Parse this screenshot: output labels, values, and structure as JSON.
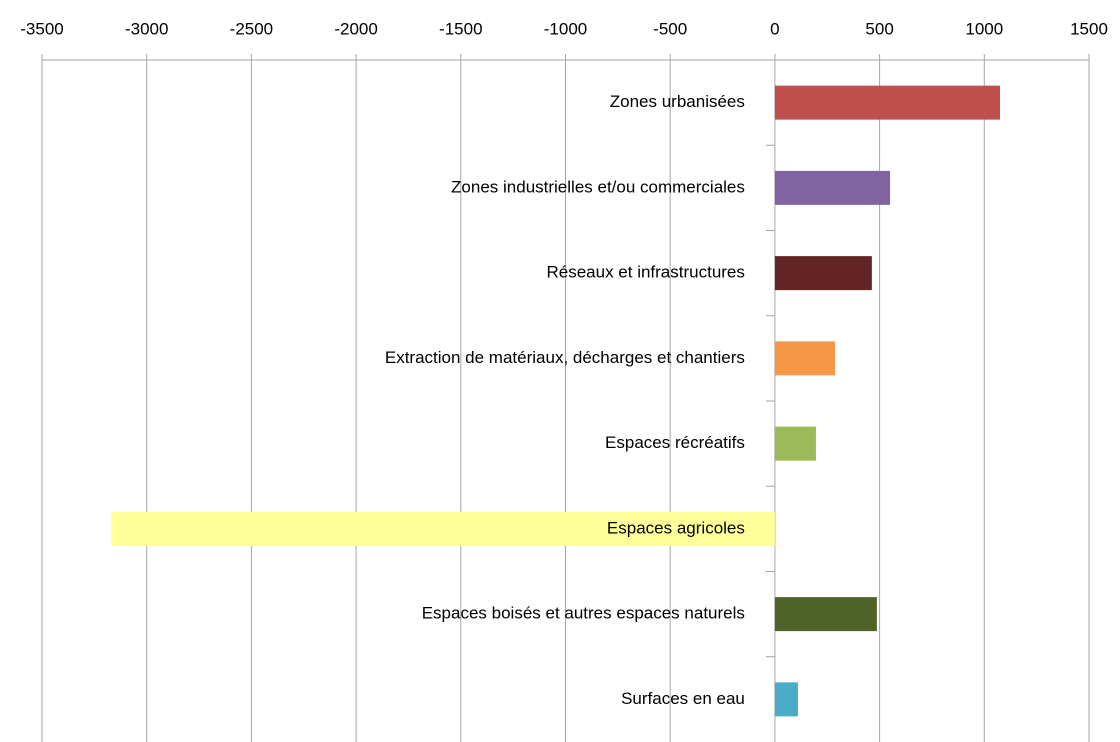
{
  "chart_data": {
    "type": "bar",
    "orientation": "horizontal",
    "categories": [
      "Zones urbanisées",
      "Zones industrielles et/ou commerciales",
      "Réseaux et infrastructures",
      "Extraction de matériaux, décharges et chantiers",
      "Espaces récréatifs",
      "Espaces agricoles",
      "Espaces boisés et autres espaces naturels",
      "Surfaces en eau"
    ],
    "values": [
      1075,
      550,
      463,
      287,
      196,
      -3170,
      487,
      110
    ],
    "colors": [
      "#c0504d",
      "#8064a2",
      "#632523",
      "#f79646",
      "#9bbb59",
      "#ffff99",
      "#4f6228",
      "#4bacc6"
    ],
    "xlim": [
      -3500,
      1500
    ],
    "xticks": [
      -3500,
      -3000,
      -2500,
      -2000,
      -1500,
      -1000,
      -500,
      0,
      500,
      1000,
      1500
    ],
    "grid": true
  }
}
